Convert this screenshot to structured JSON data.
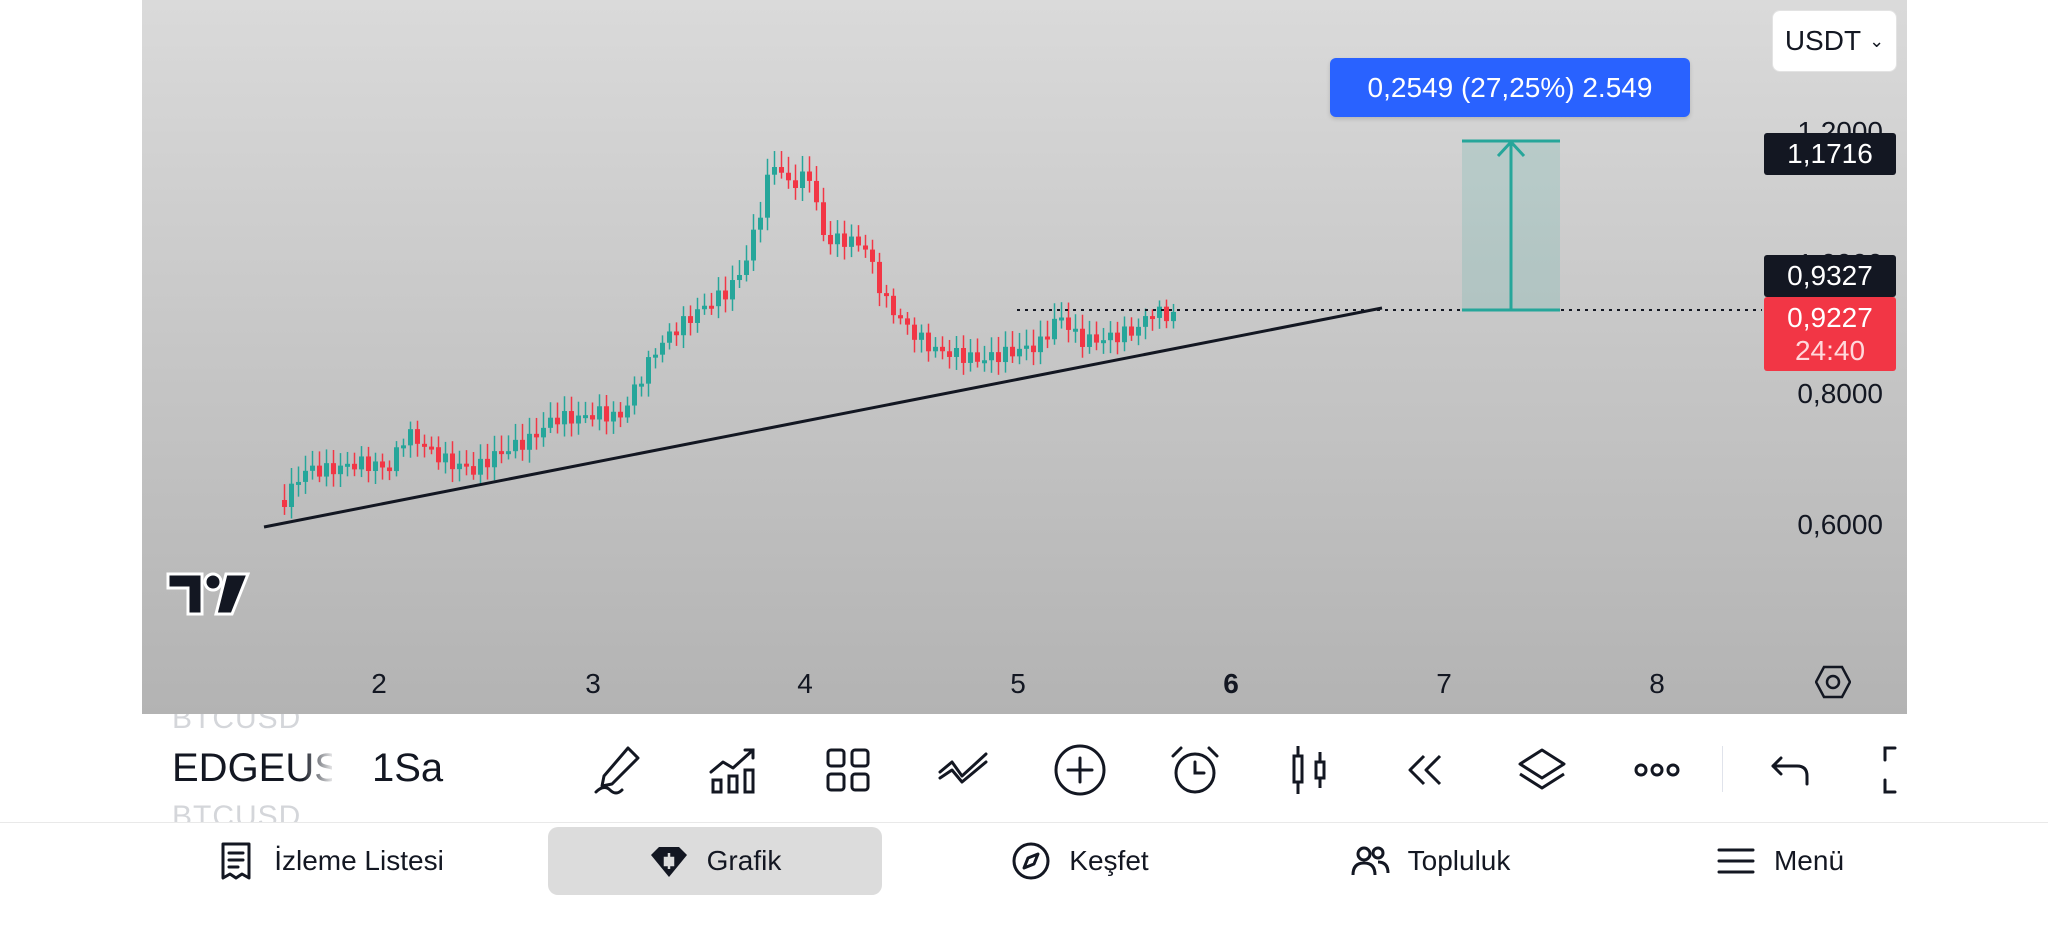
{
  "chart": {
    "currency": "USDT",
    "measure_label": "0,2549 (27,25%) 2.549",
    "y_ticks": [
      "1,2000",
      "1,0000",
      "0,8000",
      "0,6000"
    ],
    "x_ticks": [
      "2",
      "3",
      "4",
      "5",
      "6",
      "7",
      "8"
    ],
    "x_bold_tick": "6",
    "price_tags": {
      "target": "1,1716",
      "entry": "0,9327",
      "last": "0,9227",
      "countdown": "24:40"
    },
    "colors": {
      "up": "#26a69a",
      "down": "#f23645",
      "accent": "#2962ff",
      "label_dark": "#131722"
    }
  },
  "toolbar": {
    "ghost_symbol_top": "BTCUSD",
    "symbol": "EDGEUSDT",
    "ghost_symbol_bottom": "BTCUSD",
    "interval": "1Sa",
    "icons": [
      "drawing-pen-icon",
      "indicators-icon",
      "layouts-grid-icon",
      "trendline-tool-icon",
      "add-icon",
      "alarm-icon",
      "candles-icon",
      "replay-icon",
      "layers-icon",
      "more-icon",
      "undo-icon",
      "fullscreen-icon"
    ]
  },
  "bottom_nav": {
    "items": [
      {
        "label": "İzleme Listesi",
        "icon": "watchlist-icon"
      },
      {
        "label": "Grafik",
        "icon": "chart-icon"
      },
      {
        "label": "Keşfet",
        "icon": "compass-icon"
      },
      {
        "label": "Topluluk",
        "icon": "community-icon"
      },
      {
        "label": "Menü",
        "icon": "menu-icon"
      }
    ],
    "active": "Grafik"
  }
}
